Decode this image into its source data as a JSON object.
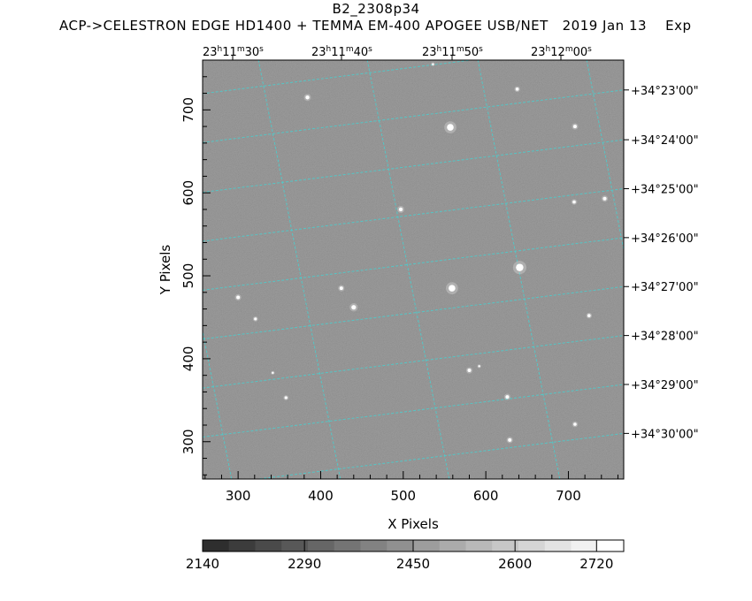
{
  "header": {
    "title": "B2_2308p34",
    "subtitle": "ACP->CELESTRON EDGE HD1400 + TEMMA EM-400 APOGEE USB/NET   2019 Jan 13    Exp"
  },
  "chart_data": {
    "type": "heatmap",
    "xlabel": "X Pixels",
    "ylabel": "Y Pixels",
    "xlim": [
      257,
      767
    ],
    "ylim": [
      255,
      760
    ],
    "x_ticks": [
      300,
      400,
      500,
      600,
      700
    ],
    "y_ticks": [
      300,
      400,
      500,
      600,
      700
    ],
    "ra_labels": [
      {
        "h": "23",
        "m": "11",
        "s": "30",
        "pos": 292
      },
      {
        "h": "23",
        "m": "11",
        "s": "40",
        "pos": 415
      },
      {
        "h": "23",
        "m": "11",
        "s": "50",
        "pos": 540
      },
      {
        "h": "23",
        "m": "12",
        "s": "00",
        "pos": 663
      }
    ],
    "dec_labels": [
      {
        "text": "+34°23'00\"",
        "value": 724
      },
      {
        "text": "+34°24'00\"",
        "value": 664
      },
      {
        "text": "+34°25'00\"",
        "value": 605
      },
      {
        "text": "+34°26'00\"",
        "value": 546
      },
      {
        "text": "+34°27'00\"",
        "value": 487
      },
      {
        "text": "+34°28'00\"",
        "value": 428
      },
      {
        "text": "+34°29'00\"",
        "value": 369
      },
      {
        "text": "+34°30'00\"",
        "value": 310
      }
    ],
    "grid": true,
    "grid_color": "#4ecbcb",
    "background_gray": "#8a8a8a",
    "stars": [
      {
        "x": 384,
        "y": 715,
        "r": 2.2
      },
      {
        "x": 557,
        "y": 679,
        "r": 3.8
      },
      {
        "x": 638,
        "y": 725,
        "r": 1.8
      },
      {
        "x": 708,
        "y": 680,
        "r": 2.0
      },
      {
        "x": 497,
        "y": 580,
        "r": 2.2
      },
      {
        "x": 707,
        "y": 589,
        "r": 1.8
      },
      {
        "x": 744,
        "y": 593,
        "r": 2.0
      },
      {
        "x": 641,
        "y": 510,
        "r": 4.2
      },
      {
        "x": 559,
        "y": 485,
        "r": 3.8
      },
      {
        "x": 425,
        "y": 485,
        "r": 2.0
      },
      {
        "x": 440,
        "y": 462,
        "r": 2.6
      },
      {
        "x": 300,
        "y": 474,
        "r": 2.0
      },
      {
        "x": 321,
        "y": 448,
        "r": 1.6
      },
      {
        "x": 725,
        "y": 452,
        "r": 1.8
      },
      {
        "x": 580,
        "y": 386,
        "r": 2.0
      },
      {
        "x": 626,
        "y": 354,
        "r": 2.0
      },
      {
        "x": 358,
        "y": 353,
        "r": 1.6
      },
      {
        "x": 708,
        "y": 321,
        "r": 1.8
      },
      {
        "x": 629,
        "y": 302,
        "r": 2.0
      },
      {
        "x": 592,
        "y": 391,
        "r": 1.2
      },
      {
        "x": 536,
        "y": 755,
        "r": 1.2
      },
      {
        "x": 342,
        "y": 383,
        "r": 1.2
      }
    ],
    "colorbar": {
      "min": 2140,
      "max": 2760,
      "tick_labels": [
        "2140",
        "2290",
        "2450",
        "2600",
        "2720"
      ],
      "tick_values": [
        2140,
        2290,
        2450,
        2600,
        2720
      ],
      "segments": 16,
      "dark": "#2e2e2e",
      "light": "#ffffff"
    }
  }
}
